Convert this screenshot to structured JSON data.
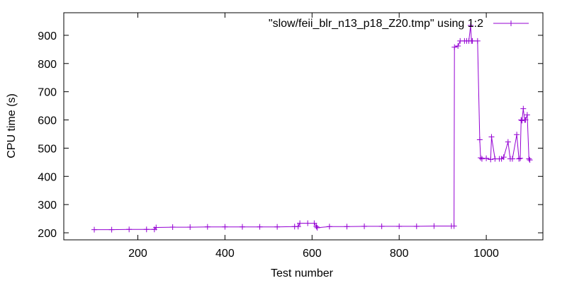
{
  "chart_data": {
    "type": "line",
    "title": "",
    "xlabel": "Test number",
    "ylabel": "CPU time (s)",
    "xlim": [
      30,
      1130
    ],
    "ylim": [
      175,
      980
    ],
    "xticks": [
      200,
      400,
      600,
      800,
      1000
    ],
    "yticks": [
      200,
      300,
      400,
      500,
      600,
      700,
      800,
      900
    ],
    "grid": false,
    "legend_position": "top-right",
    "marker": "plus",
    "series": [
      {
        "name": "\"slow/feii_blr_n13_p18_Z20.tmp\" using 1:2",
        "color": "#9400d3",
        "x": [
          100,
          140,
          180,
          220,
          238,
          242,
          280,
          320,
          360,
          400,
          440,
          480,
          520,
          560,
          568,
          572,
          590,
          605,
          610,
          612,
          640,
          680,
          720,
          760,
          800,
          840,
          880,
          920,
          926,
          927,
          935,
          940,
          950,
          955,
          960,
          964,
          966,
          968,
          980,
          985,
          987,
          990,
          1000,
          1010,
          1012,
          1020,
          1030,
          1035,
          1040,
          1050,
          1055,
          1060,
          1070,
          1075,
          1078,
          1080,
          1082,
          1085,
          1088,
          1090,
          1094,
          1098,
          1100
        ],
        "y": [
          211,
          211,
          212,
          212,
          212,
          219,
          220,
          220,
          221,
          221,
          221,
          221,
          221,
          222,
          222,
          234,
          234,
          234,
          222,
          218,
          222,
          222,
          223,
          223,
          223,
          223,
          224,
          224,
          224,
          858,
          862,
          880,
          880,
          880,
          880,
          935,
          880,
          880,
          880,
          530,
          466,
          462,
          464,
          460,
          540,
          462,
          462,
          462,
          468,
          522,
          462,
          462,
          548,
          462,
          464,
          600,
          598,
          640,
          600,
          600,
          618,
          462,
          458
        ]
      }
    ]
  }
}
